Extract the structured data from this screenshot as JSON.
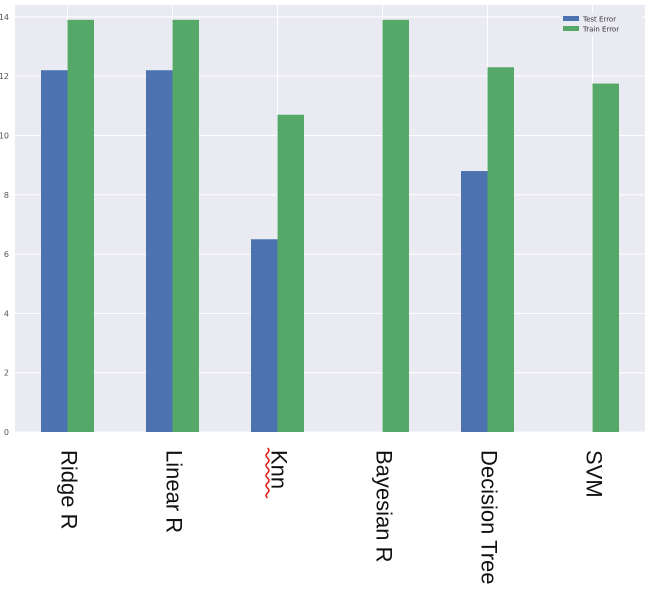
{
  "chart_data": {
    "type": "bar",
    "categories": [
      "Ridge R",
      "Linear R",
      "Knn",
      "Bayesian R",
      "Decision Tree",
      "SVM"
    ],
    "series": [
      {
        "name": "Test Error",
        "color": "#4c72b0",
        "values": [
          12.2,
          12.2,
          6.5,
          0,
          8.8,
          0
        ]
      },
      {
        "name": "Train Error",
        "color": "#55a868",
        "values": [
          13.9,
          13.9,
          10.7,
          13.9,
          12.3,
          11.75
        ]
      }
    ],
    "yticks": [
      0,
      2,
      4,
      6,
      8,
      10,
      12,
      14
    ],
    "ylim": [
      0,
      14.4
    ],
    "grid": true,
    "legend_position": "top-right",
    "spellcheck_underline_category": "Knn",
    "colors": {
      "background": "#eaeaf2",
      "grid": "#ffffff",
      "spellcheck": "#e8211f"
    }
  }
}
